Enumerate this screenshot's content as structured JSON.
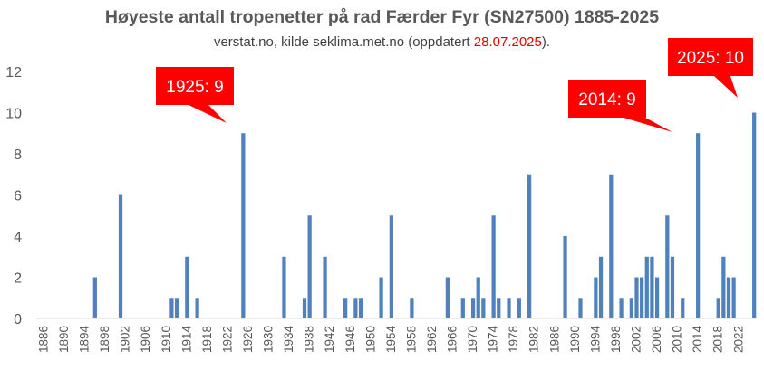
{
  "chart_data": {
    "type": "bar",
    "title": "Høyeste antall tropenetter på rad Færder Fyr (SN27500) 1885-2025",
    "subtitle_prefix": "verstat.no, kilde seklima.met.no (oppdatert ",
    "subtitle_date": "28.07.2025",
    "subtitle_suffix": ").",
    "x_start": 1885,
    "x_end": 2025,
    "x_tick_labels": [
      "1886",
      "1890",
      "1894",
      "1898",
      "1902",
      "1906",
      "1910",
      "1914",
      "1918",
      "1922",
      "1926",
      "1930",
      "1934",
      "1938",
      "1942",
      "1946",
      "1950",
      "1954",
      "1958",
      "1962",
      "1966",
      "1970",
      "1974",
      "1978",
      "1982",
      "1986",
      "1990",
      "1994",
      "1998",
      "2002",
      "2006",
      "2010",
      "2014",
      "2018",
      "2022"
    ],
    "y_ticks": [
      0,
      2,
      4,
      6,
      8,
      10,
      12
    ],
    "ylim": [
      0,
      12
    ],
    "grid": false,
    "bar_color": "#4f81bd",
    "points": [
      {
        "year": 1896,
        "value": 2
      },
      {
        "year": 1901,
        "value": 6
      },
      {
        "year": 1911,
        "value": 1
      },
      {
        "year": 1912,
        "value": 1
      },
      {
        "year": 1914,
        "value": 3
      },
      {
        "year": 1916,
        "value": 1
      },
      {
        "year": 1925,
        "value": 9
      },
      {
        "year": 1933,
        "value": 3
      },
      {
        "year": 1937,
        "value": 1
      },
      {
        "year": 1938,
        "value": 5
      },
      {
        "year": 1941,
        "value": 3
      },
      {
        "year": 1945,
        "value": 1
      },
      {
        "year": 1947,
        "value": 1
      },
      {
        "year": 1948,
        "value": 1
      },
      {
        "year": 1952,
        "value": 2
      },
      {
        "year": 1954,
        "value": 5
      },
      {
        "year": 1958,
        "value": 1
      },
      {
        "year": 1965,
        "value": 2
      },
      {
        "year": 1968,
        "value": 1
      },
      {
        "year": 1970,
        "value": 1
      },
      {
        "year": 1971,
        "value": 2
      },
      {
        "year": 1972,
        "value": 1
      },
      {
        "year": 1974,
        "value": 5
      },
      {
        "year": 1975,
        "value": 1
      },
      {
        "year": 1977,
        "value": 1
      },
      {
        "year": 1979,
        "value": 1
      },
      {
        "year": 1981,
        "value": 7
      },
      {
        "year": 1988,
        "value": 4
      },
      {
        "year": 1991,
        "value": 1
      },
      {
        "year": 1994,
        "value": 2
      },
      {
        "year": 1995,
        "value": 3
      },
      {
        "year": 1997,
        "value": 7
      },
      {
        "year": 1999,
        "value": 1
      },
      {
        "year": 2001,
        "value": 1
      },
      {
        "year": 2002,
        "value": 2
      },
      {
        "year": 2003,
        "value": 2
      },
      {
        "year": 2004,
        "value": 3
      },
      {
        "year": 2005,
        "value": 3
      },
      {
        "year": 2006,
        "value": 2
      },
      {
        "year": 2008,
        "value": 5
      },
      {
        "year": 2009,
        "value": 3
      },
      {
        "year": 2011,
        "value": 1
      },
      {
        "year": 2014,
        "value": 9
      },
      {
        "year": 2018,
        "value": 1
      },
      {
        "year": 2019,
        "value": 3
      },
      {
        "year": 2020,
        "value": 2
      },
      {
        "year": 2021,
        "value": 2
      },
      {
        "year": 2025,
        "value": 10
      }
    ],
    "annotations": [
      {
        "text": "1925: 9",
        "year": 1925,
        "value": 9,
        "color": "#ff0000"
      },
      {
        "text": "2014: 9",
        "year": 2014,
        "value": 9,
        "color": "#ff0000"
      },
      {
        "text": "2025: 10",
        "year": 2025,
        "value": 10,
        "color": "#ff0000"
      }
    ]
  }
}
